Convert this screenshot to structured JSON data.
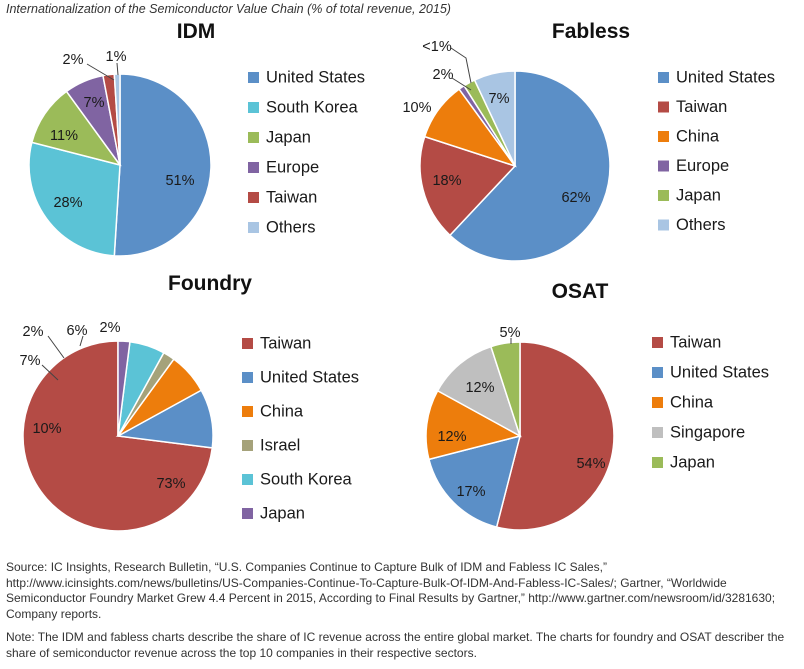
{
  "figure_title": "Internationalization of the Semiconductor Value Chain (% of total revenue, 2015)",
  "colors": {
    "united_states": "#5b8fc7",
    "south_korea": "#5bc3d6",
    "japan": "#9bbb59",
    "europe": "#8064a2",
    "taiwan": "#b44b45",
    "others": "#a9c5e3",
    "china": "#ed7d0c",
    "israel": "#a5a27a",
    "singapore": "#bfbfbf"
  },
  "chart_data": [
    {
      "type": "pie",
      "title": "IDM",
      "slices": [
        {
          "name": "United States",
          "value": 51,
          "label": "51%",
          "color": "#5b8fc7"
        },
        {
          "name": "South Korea",
          "value": 28,
          "label": "28%",
          "color": "#5bc3d6"
        },
        {
          "name": "Japan",
          "value": 11,
          "label": "11%",
          "color": "#9bbb59"
        },
        {
          "name": "Europe",
          "value": 7,
          "label": "7%",
          "color": "#8064a2"
        },
        {
          "name": "Taiwan",
          "value": 2,
          "label": "2%",
          "color": "#b44b45"
        },
        {
          "name": "Others",
          "value": 1,
          "label": "1%",
          "color": "#a9c5e3"
        }
      ],
      "legend": [
        "United States",
        "South Korea",
        "Japan",
        "Europe",
        "Taiwan",
        "Others"
      ]
    },
    {
      "type": "pie",
      "title": "Fabless",
      "slices": [
        {
          "name": "United States",
          "value": 62,
          "label": "62%",
          "color": "#5b8fc7"
        },
        {
          "name": "Taiwan",
          "value": 18,
          "label": "18%",
          "color": "#b44b45"
        },
        {
          "name": "China",
          "value": 10,
          "label": "10%",
          "color": "#ed7d0c"
        },
        {
          "name": "Europe",
          "value": 1,
          "label": "<1%",
          "color": "#8064a2"
        },
        {
          "name": "Japan",
          "value": 2,
          "label": "2%",
          "color": "#9bbb59"
        },
        {
          "name": "Others",
          "value": 7,
          "label": "7%",
          "color": "#a9c5e3"
        }
      ],
      "legend": [
        "United States",
        "Taiwan",
        "China",
        "Europe",
        "Japan",
        "Others"
      ]
    },
    {
      "type": "pie",
      "title": "Foundry",
      "slices": [
        {
          "name": "Taiwan",
          "value": 73,
          "label": "73%",
          "color": "#b44b45"
        },
        {
          "name": "United States",
          "value": 10,
          "label": "10%",
          "color": "#5b8fc7"
        },
        {
          "name": "China",
          "value": 7,
          "label": "7%",
          "color": "#ed7d0c"
        },
        {
          "name": "Israel",
          "value": 2,
          "label": "2%",
          "color": "#a5a27a"
        },
        {
          "name": "South Korea",
          "value": 6,
          "label": "6%",
          "color": "#5bc3d6"
        },
        {
          "name": "Japan",
          "value": 2,
          "label": "2%",
          "color": "#8064a2"
        }
      ],
      "legend": [
        "Taiwan",
        "United States",
        "China",
        "Israel",
        "South Korea",
        "Japan"
      ]
    },
    {
      "type": "pie",
      "title": "OSAT",
      "slices": [
        {
          "name": "Taiwan",
          "value": 54,
          "label": "54%",
          "color": "#b44b45"
        },
        {
          "name": "United States",
          "value": 17,
          "label": "17%",
          "color": "#5b8fc7"
        },
        {
          "name": "China",
          "value": 12,
          "label": "12%",
          "color": "#ed7d0c"
        },
        {
          "name": "Singapore",
          "value": 12,
          "label": "12%",
          "color": "#bfbfbf"
        },
        {
          "name": "Japan",
          "value": 5,
          "label": "5%",
          "color": "#9bbb59"
        }
      ],
      "legend": [
        "Taiwan",
        "United States",
        "China",
        "Singapore",
        "Japan"
      ]
    }
  ],
  "footer": {
    "source": "Source:  IC Insights, Research Bulletin, “U.S. Companies Continue to Capture Bulk of IDM and Fabless IC Sales,” http://www.icinsights.com/news/bulletins/US-Companies-Continue-To-Capture-Bulk-Of-IDM-And-Fabless-IC-Sales/; Gartner, “Worldwide Semiconductor Foundry Market Grew 4.4 Percent in 2015, According to Final Results by Gartner,” http://www.gartner.com/newsroom/id/3281630; Company reports.",
    "note": "Note: The IDM and fabless charts describe the share of IC revenue across the entire global market. The charts for foundry and OSAT describer the share of semiconductor revenue across the top 10 companies in their respective sectors."
  }
}
